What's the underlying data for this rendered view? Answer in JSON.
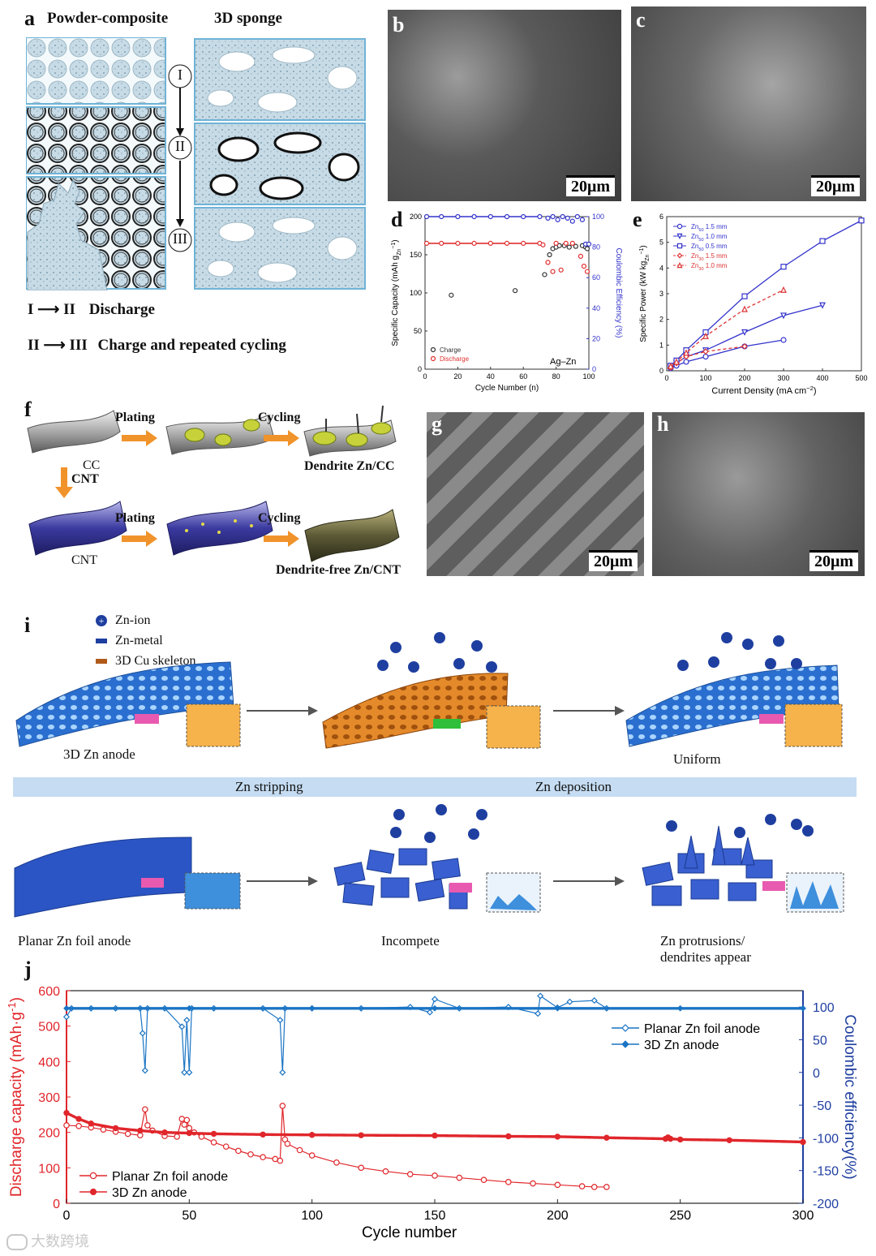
{
  "panel_a": {
    "label": "a",
    "title_left": "Powder-composite",
    "title_right": "3D sponge",
    "stages": [
      "I",
      "II",
      "III"
    ],
    "legend": [
      {
        "from": "I",
        "to": "II",
        "text": "Discharge"
      },
      {
        "from": "II",
        "to": "III",
        "text": "Charge and repeated cycling"
      }
    ]
  },
  "panel_b": {
    "label": "b",
    "scale": "20μm"
  },
  "panel_c": {
    "label": "c",
    "scale": "20μm"
  },
  "panel_d": {
    "label": "d",
    "annotation": "Ag–Zn30"
  },
  "panel_e": {
    "label": "e"
  },
  "panel_f": {
    "label": "f",
    "steps": [
      "Plating",
      "Cycling",
      "CNT",
      "Plating",
      "Cycling"
    ],
    "captions": [
      "CC",
      "Dendrite Zn/CC",
      "CNT",
      "Dendrite-free Zn/CNT"
    ]
  },
  "panel_g": {
    "label": "g",
    "scale": "20μm"
  },
  "panel_h": {
    "label": "h",
    "scale": "20μm"
  },
  "panel_i": {
    "label": "i",
    "legend": [
      "Zn-ion",
      "Zn-metal",
      "3D Cu skeleton"
    ],
    "captions_top": [
      "3D Zn anode",
      "Uniform"
    ],
    "band": [
      "Zn stripping",
      "Zn deposition"
    ],
    "captions_bottom": [
      "Planar Zn foil anode",
      "Incompete",
      "Zn protrusions/",
      "dendrites appear"
    ]
  },
  "panel_j": {
    "label": "j"
  },
  "watermark": "大数跨境",
  "colors": {
    "red": "#e0262b",
    "blue": "#1a74c4",
    "navy": "#1f3fa0",
    "chart_blue": "#2233cc"
  },
  "chart_data": [
    {
      "id": "d",
      "type": "scatter",
      "xlabel": "Cycle Number (n)",
      "ylabel": "Specific Capacity (mAh g",
      "ylabel_sub": "Zn",
      "ylabel_sup": "−1",
      "ylabel_close": ")",
      "y2label": "Coulombic Efficiency (%)",
      "xlim": [
        0,
        100
      ],
      "ylim": [
        0,
        200
      ],
      "y2lim": [
        0,
        100
      ],
      "xticks": [
        0,
        20,
        40,
        60,
        80,
        100
      ],
      "yticks": [
        0,
        50,
        100,
        150,
        200
      ],
      "y2ticks": [
        0,
        20,
        40,
        60,
        80,
        100
      ],
      "legend": [
        "Charge",
        "Discharge"
      ],
      "series": [
        {
          "name": "Charge",
          "color": "#333333",
          "x": [
            16,
            55,
            73,
            76,
            78,
            80,
            82,
            85,
            88,
            92,
            96,
            98,
            99
          ],
          "y": [
            97,
            103,
            124,
            150,
            158,
            160,
            162,
            162,
            160,
            161,
            162,
            160,
            158
          ]
        },
        {
          "name": "Discharge",
          "color": "#e03030",
          "x": [
            1,
            10,
            20,
            30,
            40,
            50,
            60,
            70,
            72,
            75,
            78,
            80,
            83,
            86,
            90,
            95,
            97,
            99
          ],
          "y": [
            165,
            165,
            165,
            165,
            165,
            165,
            165,
            165,
            163,
            140,
            128,
            165,
            130,
            165,
            165,
            148,
            135,
            128
          ]
        },
        {
          "name": "Charge CE",
          "color": "#3333cc",
          "axis": "right",
          "x": [
            1,
            10,
            20,
            30,
            40,
            50,
            60,
            70,
            75,
            78,
            81,
            84,
            87,
            90,
            93,
            96,
            98,
            100
          ],
          "y": [
            100,
            100,
            100,
            100,
            100,
            100,
            100,
            100,
            99,
            100,
            98,
            100,
            99,
            97,
            100,
            98,
            82,
            82
          ]
        }
      ]
    },
    {
      "id": "e",
      "type": "line",
      "xlabel": "Current Density (mA cm",
      "xlabel_sup": "−2",
      "xlabel_close": ")",
      "ylabel": "Specific Power (kW kg",
      "ylabel_sub": "Zn",
      "ylabel_sup": "−1",
      "ylabel_close": ")",
      "xlim": [
        0,
        500
      ],
      "ylim": [
        0,
        6
      ],
      "xticks": [
        0,
        100,
        200,
        300,
        400,
        500
      ],
      "yticks": [
        0,
        1,
        2,
        3,
        4,
        5,
        6
      ],
      "series": [
        {
          "name": "Zn",
          "sub": "50",
          "suffix": " 1.5 mm",
          "color": "#3333cc",
          "marker": "circle",
          "dash": false,
          "x": [
            10,
            25,
            50,
            100,
            200,
            300
          ],
          "y": [
            0.1,
            0.2,
            0.35,
            0.55,
            0.95,
            1.2
          ]
        },
        {
          "name": "Zn",
          "sub": "50",
          "suffix": " 1.0 mm",
          "color": "#3333cc",
          "marker": "tri-down",
          "dash": false,
          "x": [
            10,
            25,
            50,
            100,
            200,
            300,
            400
          ],
          "y": [
            0.15,
            0.3,
            0.55,
            0.8,
            1.5,
            2.15,
            2.55
          ]
        },
        {
          "name": "Zn",
          "sub": "50",
          "suffix": " 0.5 mm",
          "color": "#3333cc",
          "marker": "square",
          "dash": false,
          "x": [
            10,
            25,
            50,
            100,
            200,
            300,
            400,
            500
          ],
          "y": [
            0.2,
            0.4,
            0.8,
            1.5,
            2.9,
            4.05,
            5.05,
            5.85
          ]
        },
        {
          "name": "Zn",
          "sub": "30",
          "suffix": " 1.5 mm",
          "color": "#dd3333",
          "marker": "diamond",
          "dash": true,
          "x": [
            10,
            25,
            50,
            100,
            200
          ],
          "y": [
            0.12,
            0.3,
            0.55,
            0.75,
            0.95
          ]
        },
        {
          "name": "Zn",
          "sub": "30",
          "suffix": " 1.0 mm",
          "color": "#dd3333",
          "marker": "tri-up",
          "dash": true,
          "x": [
            10,
            25,
            50,
            100,
            200,
            300
          ],
          "y": [
            0.18,
            0.35,
            0.7,
            1.35,
            2.4,
            3.15
          ]
        }
      ]
    },
    {
      "id": "j",
      "type": "line",
      "xlabel": "Cycle number",
      "ylabel": "Discharge capacity (mAh·g",
      "ylabel_sup": "-1",
      "ylabel_close": ")",
      "y2label": "Coulombic efficiency(%)",
      "xlim": [
        0,
        300
      ],
      "ylim": [
        0,
        600
      ],
      "y2lim": [
        -200,
        125
      ],
      "xticks": [
        0,
        50,
        100,
        150,
        200,
        250,
        300
      ],
      "yticks": [
        0,
        100,
        200,
        300,
        400,
        500,
        600
      ],
      "y2ticks": [
        -200,
        -150,
        -100,
        -50,
        0,
        50,
        100
      ],
      "legend_capacity": [
        "Planar Zn foil anode",
        "3D Zn anode"
      ],
      "legend_efficiency": [
        "Planar Zn foil anode",
        "3D Zn anode"
      ],
      "series": [
        {
          "name": "Planar Zn foil anode",
          "kind": "capacity",
          "color": "#e0262b",
          "marker": "open-circle",
          "x": [
            0,
            5,
            10,
            15,
            20,
            25,
            30,
            32,
            33,
            35,
            40,
            45,
            47,
            48,
            49,
            50,
            52,
            55,
            60,
            65,
            70,
            75,
            80,
            85,
            87,
            88,
            89,
            90,
            95,
            100,
            110,
            120,
            130,
            140,
            150,
            160,
            170,
            180,
            190,
            200,
            210,
            215,
            220
          ],
          "y": [
            220,
            218,
            214,
            208,
            202,
            196,
            192,
            265,
            220,
            205,
            190,
            188,
            238,
            222,
            235,
            212,
            200,
            188,
            172,
            160,
            148,
            138,
            130,
            125,
            120,
            275,
            180,
            168,
            150,
            135,
            115,
            100,
            90,
            82,
            78,
            72,
            66,
            60,
            56,
            52,
            48,
            46,
            46
          ]
        },
        {
          "name": "3D Zn anode",
          "kind": "capacity",
          "color": "#e0262b",
          "marker": "filled-circle",
          "x": [
            0,
            5,
            10,
            20,
            30,
            40,
            50,
            60,
            80,
            100,
            120,
            150,
            180,
            200,
            220,
            244,
            245,
            246,
            250,
            270,
            300
          ],
          "y": [
            255,
            238,
            225,
            212,
            205,
            200,
            198,
            196,
            194,
            193,
            192,
            191,
            189,
            188,
            185,
            182,
            186,
            182,
            180,
            178,
            173
          ]
        },
        {
          "name": "Planar Zn foil anode",
          "kind": "efficiency",
          "color": "#1a74c4",
          "marker": "open-diamond",
          "x": [
            0,
            2,
            10,
            20,
            30,
            31,
            32,
            33,
            40,
            47,
            48,
            49,
            50,
            51,
            60,
            80,
            87,
            88,
            89,
            100,
            120,
            140,
            148,
            150,
            160,
            180,
            192,
            193,
            200,
            205,
            215,
            220
          ],
          "y": [
            85,
            98,
            98,
            98,
            98,
            60,
            3,
            98,
            98,
            70,
            0,
            80,
            0,
            98,
            98,
            98,
            80,
            0,
            98,
            98,
            98,
            100,
            92,
            112,
            98,
            100,
            90,
            117,
            99,
            108,
            110,
            98
          ]
        },
        {
          "name": "3D Zn anode",
          "kind": "efficiency",
          "color": "#1a74c4",
          "marker": "filled-diamond",
          "x": [
            0,
            50,
            100,
            150,
            200,
            250,
            300
          ],
          "y": [
            98,
            98,
            98,
            98,
            98,
            98,
            98
          ]
        }
      ]
    }
  ]
}
